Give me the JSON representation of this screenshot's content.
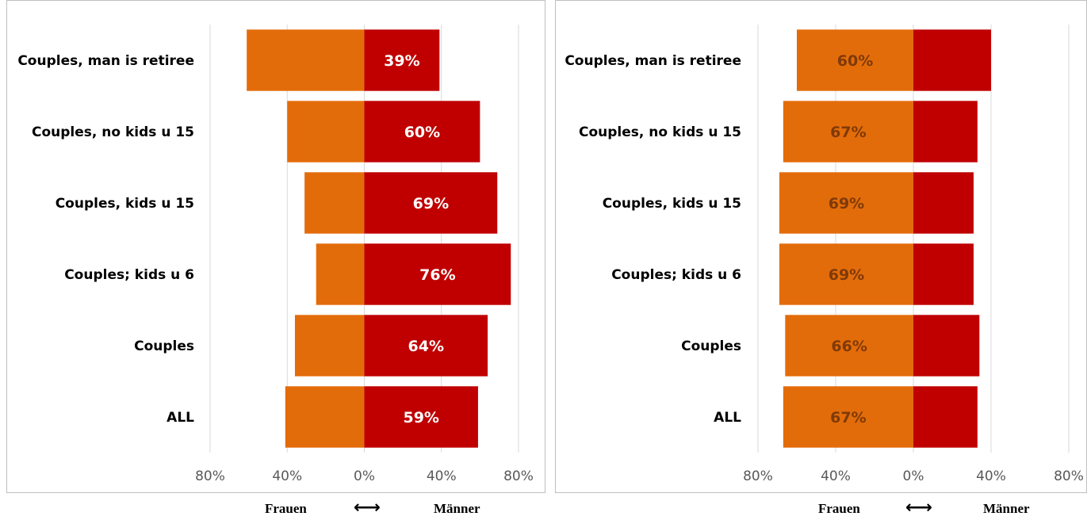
{
  "colors": {
    "women": "#e36c0a",
    "men": "#c00000",
    "grid": "#d9d9d9",
    "label_light": "#ffffff",
    "label_dark": "#7f3a08"
  },
  "footer": {
    "left": "Frauen",
    "arrows": "←→",
    "right": "Männer"
  },
  "chart_data": [
    {
      "type": "bar",
      "orientation": "horizontal-diverging",
      "categories": [
        "Couples, man is retiree",
        "Couples, no kids u 15",
        "Couples, kids u 15",
        "Couples; kids u 6",
        "Couples",
        "ALL"
      ],
      "series": [
        {
          "values": [
            -61,
            -40,
            -31,
            -25,
            -36,
            -41
          ]
        },
        {
          "values": [
            39,
            60,
            69,
            76,
            64,
            59
          ]
        }
      ],
      "data_labels": [
        "39%",
        "60%",
        "69%",
        "76%",
        "64%",
        "59%"
      ],
      "label_series": 1,
      "xlim": [
        -80,
        80
      ],
      "xticks": [
        "80%",
        "40%",
        "0%",
        "40%",
        "80%"
      ],
      "grid": true
    },
    {
      "type": "bar",
      "orientation": "horizontal-diverging",
      "categories": [
        "Couples, man is retiree",
        "Couples, no kids u 15",
        "Couples, kids u 15",
        "Couples; kids u 6",
        "Couples",
        "ALL"
      ],
      "series": [
        {
          "values": [
            -60,
            -67,
            -69,
            -69,
            -66,
            -67
          ]
        },
        {
          "values": [
            40,
            33,
            31,
            31,
            34,
            33
          ]
        }
      ],
      "data_labels": [
        "60%",
        "67%",
        "69%",
        "69%",
        "66%",
        "67%"
      ],
      "label_series": 0,
      "xlim": [
        -80,
        80
      ],
      "xticks": [
        "80%",
        "40%",
        "0%",
        "40%",
        "80%"
      ],
      "grid": true
    }
  ]
}
